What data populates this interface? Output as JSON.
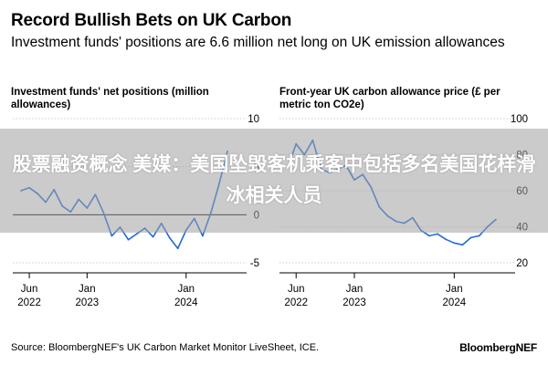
{
  "header": {
    "title": "Record Bullish Bets on UK Carbon",
    "subtitle": "Investment funds' positions are 6.6 million net long on UK emission allowances"
  },
  "overlay": {
    "text": "股票融资概念 美媒：美国坠毁客机乘客中包括多名美国花样滑冰相关人员"
  },
  "footer": {
    "source": "Source: BloombergNEF's UK Carbon Market Monitor LiveSheet, ICE.",
    "brand": "BloombergNEF"
  },
  "colors": {
    "line": "#1f6bd6",
    "grid": "#cccccc",
    "baseline": "#000000"
  },
  "chart_data": [
    {
      "type": "line",
      "title": "Investment funds' net positions (million allowances)",
      "xlabel": "",
      "ylabel": "",
      "x_ticks": [
        {
          "value": "2022-06",
          "label": [
            "Jun",
            "2022"
          ]
        },
        {
          "value": "2023-01",
          "label": [
            "Jan",
            "2023"
          ]
        },
        {
          "value": "2024-01",
          "label": [
            "Jan",
            "2024"
          ]
        }
      ],
      "y_ticks": [
        10,
        5,
        0,
        -5
      ],
      "ylim": [
        -5,
        10
      ],
      "grid": true,
      "series": [
        {
          "x": [
            "2022-05",
            "2022-06",
            "2022-07",
            "2022-08",
            "2022-09",
            "2022-10",
            "2022-11",
            "2022-12",
            "2023-01",
            "2023-02",
            "2023-03",
            "2023-04",
            "2023-05",
            "2023-06",
            "2023-07",
            "2023-08",
            "2023-09",
            "2023-10",
            "2023-11",
            "2023-12",
            "2024-01",
            "2024-02",
            "2024-03",
            "2024-04",
            "2024-05",
            "2024-06"
          ],
          "y": [
            2.5,
            2.8,
            2.2,
            1.3,
            2.6,
            0.9,
            0.3,
            1.6,
            0.7,
            2.1,
            0.2,
            -2.2,
            -1.3,
            -2.6,
            -2.0,
            -1.4,
            -2.3,
            -0.9,
            -2.4,
            -3.5,
            -1.6,
            -0.4,
            -2.2,
            0.2,
            3.2,
            6.6
          ]
        }
      ]
    },
    {
      "type": "line",
      "title": "Front-year UK carbon allowance price (£ per metric ton CO2e)",
      "xlabel": "",
      "ylabel": "",
      "x_ticks": [
        {
          "value": "2022-06",
          "label": [
            "Jun",
            "2022"
          ]
        },
        {
          "value": "2023-01",
          "label": [
            "Jan",
            "2023"
          ]
        },
        {
          "value": "2024-01",
          "label": [
            "Jan",
            "2024"
          ]
        }
      ],
      "y_ticks": [
        100,
        80,
        60,
        40,
        20
      ],
      "ylim": [
        20,
        100
      ],
      "grid": true,
      "series": [
        {
          "x": [
            "2022-05",
            "2022-06",
            "2022-07",
            "2022-08",
            "2022-09",
            "2022-10",
            "2022-11",
            "2022-12",
            "2023-01",
            "2023-02",
            "2023-03",
            "2023-04",
            "2023-05",
            "2023-06",
            "2023-07",
            "2023-08",
            "2023-09",
            "2023-10",
            "2023-11",
            "2023-12",
            "2024-01",
            "2024-02",
            "2024-03",
            "2024-04",
            "2024-05",
            "2024-06"
          ],
          "y": [
            73,
            86,
            80,
            88,
            72,
            70,
            72,
            74,
            66,
            69,
            62,
            51,
            46,
            43,
            42,
            45,
            38,
            35,
            36,
            33,
            31,
            30,
            34,
            35,
            40,
            44
          ]
        }
      ]
    }
  ]
}
